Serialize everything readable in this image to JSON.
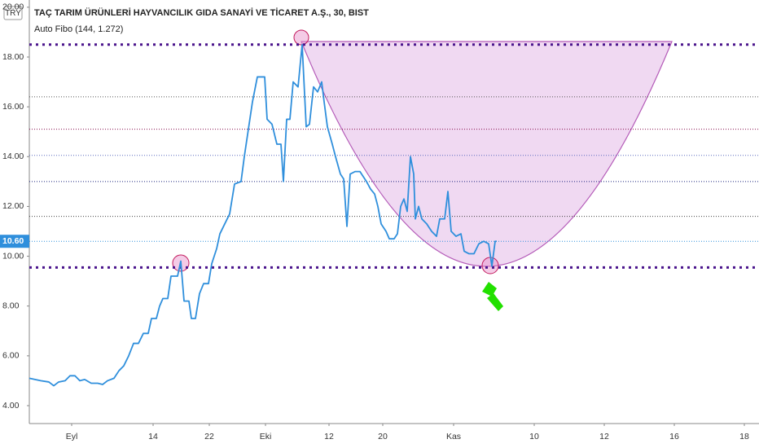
{
  "chart_data": {
    "type": "line",
    "title": "TAÇ TARIM ÜRÜNLERİ HAYVANCILIK GIDA SANAYİ VE TİCARET A.Ş., 30, BIST",
    "indicator": "Auto Fibo (144, 1.272)",
    "currency": "TRY",
    "xlim": [
      0,
      896
    ],
    "ylim": [
      3.28,
      20.29
    ],
    "xticks": [
      {
        "value": 52,
        "label": "Eyl"
      },
      {
        "value": 152,
        "label": "14"
      },
      {
        "value": 221,
        "label": "22"
      },
      {
        "value": 290,
        "label": "Eki"
      },
      {
        "value": 368,
        "label": "12"
      },
      {
        "value": 434,
        "label": "20"
      },
      {
        "value": 521,
        "label": "Kas"
      },
      {
        "value": 620,
        "label": "10"
      },
      {
        "value": 706,
        "label": "12"
      },
      {
        "value": 792,
        "label": "16"
      },
      {
        "value": 878,
        "label": "18"
      }
    ],
    "yticks": [
      {
        "value": 4,
        "label": "4.00"
      },
      {
        "value": 6,
        "label": "6.00"
      },
      {
        "value": 8,
        "label": "8.00"
      },
      {
        "value": 10,
        "label": "10.00"
      },
      {
        "value": 12,
        "label": "12.00"
      },
      {
        "value": 14,
        "label": "14.00"
      },
      {
        "value": 16,
        "label": "16.00"
      },
      {
        "value": 18,
        "label": "18.00"
      },
      {
        "value": 20,
        "label": "20.00"
      }
    ],
    "last_price": {
      "value": 10.6,
      "label": "10.60"
    },
    "series": [
      {
        "color": "#2f8fdc",
        "x": [
          0,
          14,
          24,
          30,
          36,
          44,
          50,
          56,
          62,
          68,
          76,
          84,
          90,
          96,
          104,
          110,
          116,
          122,
          128,
          134,
          140,
          146,
          150,
          156,
          160,
          164,
          170,
          174,
          182,
          186,
          190,
          196,
          199,
          204,
          209,
          214,
          220,
          224,
          230,
          234,
          240,
          246,
          252,
          260,
          264,
          269,
          274,
          280,
          289,
          292,
          298,
          304,
          309,
          312,
          316,
          320,
          324,
          330,
          335,
          340,
          344,
          349,
          354,
          359,
          362,
          366,
          372,
          376,
          382,
          386,
          390,
          394,
          400,
          406,
          410,
          414,
          419,
          424,
          428,
          432,
          438,
          442,
          448,
          452,
          456,
          460,
          464,
          468,
          472,
          474,
          478,
          482,
          488,
          494,
          500,
          504,
          510,
          514,
          518,
          524,
          530,
          534,
          540,
          546,
          552,
          558,
          564,
          568,
          572,
          574
        ],
        "values": [
          5.1,
          5.0,
          4.95,
          4.8,
          4.95,
          5.0,
          5.2,
          5.2,
          5.0,
          5.05,
          4.9,
          4.9,
          4.85,
          5.0,
          5.1,
          5.4,
          5.6,
          6.0,
          6.5,
          6.5,
          6.9,
          6.9,
          7.5,
          7.5,
          8.0,
          8.3,
          8.3,
          9.2,
          9.2,
          9.8,
          8.2,
          8.2,
          7.5,
          7.5,
          8.5,
          8.9,
          8.9,
          9.7,
          10.3,
          10.9,
          11.3,
          11.7,
          12.9,
          13.0,
          14.0,
          15.1,
          16.2,
          17.2,
          17.2,
          15.5,
          15.3,
          14.5,
          14.5,
          13.0,
          15.5,
          15.5,
          17.0,
          16.8,
          18.5,
          15.2,
          15.3,
          16.8,
          16.6,
          17.0,
          16.2,
          15.2,
          14.5,
          14.0,
          13.3,
          13.1,
          11.2,
          13.3,
          13.4,
          13.4,
          13.2,
          13.0,
          12.7,
          12.5,
          12.0,
          11.3,
          11.0,
          10.7,
          10.7,
          10.9,
          12.0,
          12.3,
          11.8,
          14.0,
          13.3,
          11.5,
          12.0,
          11.5,
          11.3,
          11.0,
          10.8,
          11.5,
          11.5,
          12.6,
          11.0,
          10.8,
          10.9,
          10.2,
          10.1,
          10.1,
          10.5,
          10.6,
          10.5,
          9.6,
          10.6,
          10.6
        ]
      }
    ],
    "levels": [
      {
        "value": 18.5,
        "color": "#4a148c"
      },
      {
        "value": 16.4,
        "color": "#555555"
      },
      {
        "value": 15.1,
        "color": "#880e4f"
      },
      {
        "value": 14.05,
        "color": "#5c6bc0"
      },
      {
        "value": 13.0,
        "color": "#1a237e"
      },
      {
        "value": 11.6,
        "color": "#424242"
      },
      {
        "value": 9.55,
        "color": "#4a148c"
      }
    ]
  }
}
